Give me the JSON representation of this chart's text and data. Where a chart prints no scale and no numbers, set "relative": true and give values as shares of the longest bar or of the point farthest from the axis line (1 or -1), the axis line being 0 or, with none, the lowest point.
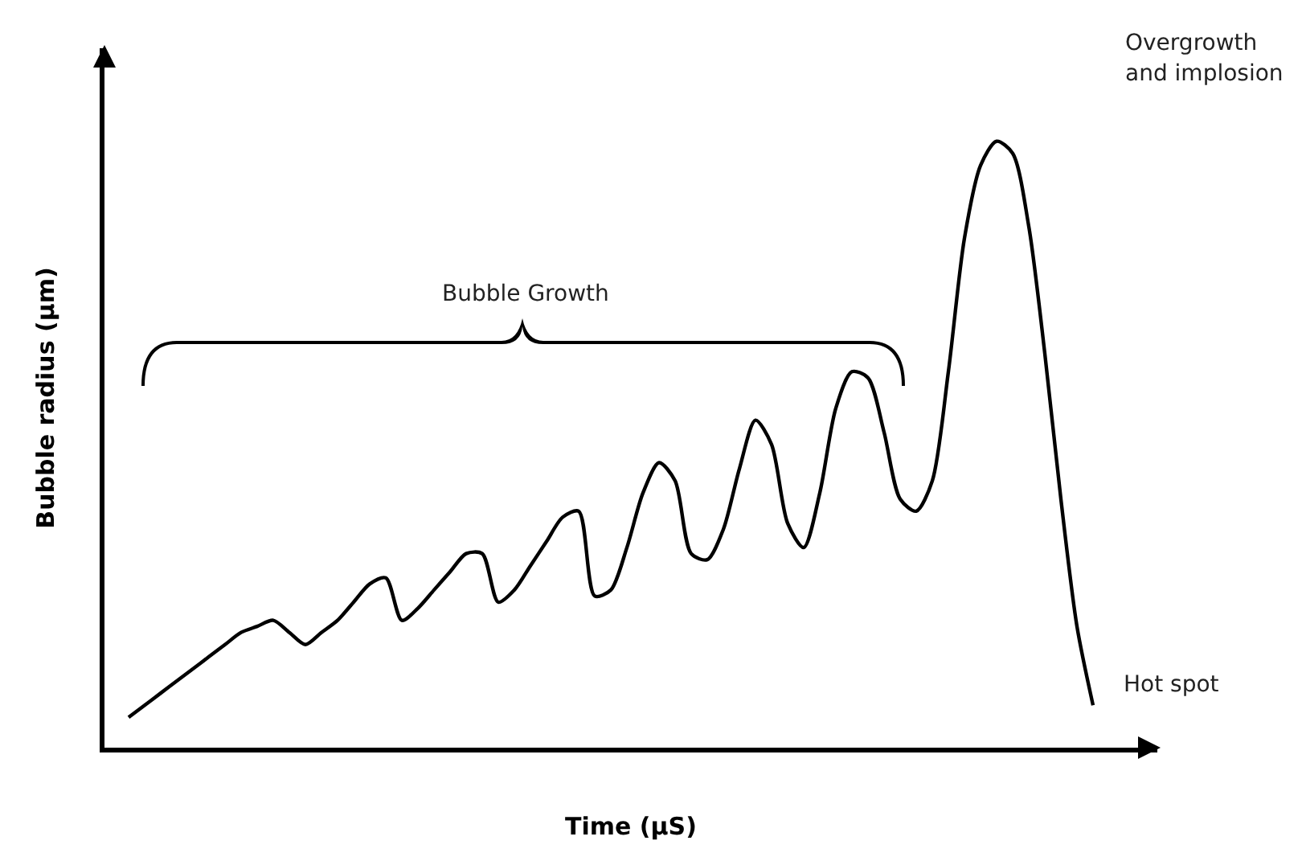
{
  "chart_data": {
    "type": "line",
    "relative": true,
    "xlabel": "Time (µS)",
    "ylabel": "Bubble radius (µm)",
    "annotations": [
      "Bubble Growth",
      "Overgrowth and implosion",
      "Hot spot"
    ],
    "marker": "none",
    "line_style": "solid",
    "categories": [
      null,
      null,
      null,
      null,
      null,
      null,
      null,
      null,
      null,
      null,
      null,
      null,
      null,
      null,
      null,
      null,
      null,
      null,
      null,
      null,
      null,
      null,
      null,
      null,
      null,
      null,
      null,
      null,
      null,
      null,
      null,
      null,
      null,
      null,
      null,
      null,
      null,
      null,
      null,
      null,
      null,
      null,
      null,
      null,
      null,
      null,
      null,
      null,
      null,
      null,
      null,
      null,
      null,
      null,
      null,
      null,
      null,
      null,
      null,
      null,
      null
    ],
    "series": [
      {
        "color": "#000000",
        "values": [
          0.05,
          0.07,
          0.09,
          0.11,
          0.13,
          0.15,
          0.17,
          0.19,
          0.2,
          0.21,
          0.19,
          0.17,
          0.19,
          0.21,
          0.24,
          0.27,
          0.28,
          0.21,
          0.23,
          0.26,
          0.29,
          0.32,
          0.32,
          0.24,
          0.26,
          0.3,
          0.34,
          0.38,
          0.39,
          0.25,
          0.26,
          0.33,
          0.42,
          0.47,
          0.44,
          0.32,
          0.31,
          0.36,
          0.46,
          0.54,
          0.5,
          0.37,
          0.33,
          0.42,
          0.56,
          0.62,
          0.61,
          0.52,
          0.41,
          0.39,
          0.44,
          0.62,
          0.84,
          0.96,
          1,
          0.98,
          0.86,
          0.65,
          0.41,
          0.2,
          0.07
        ]
      }
    ]
  }
}
